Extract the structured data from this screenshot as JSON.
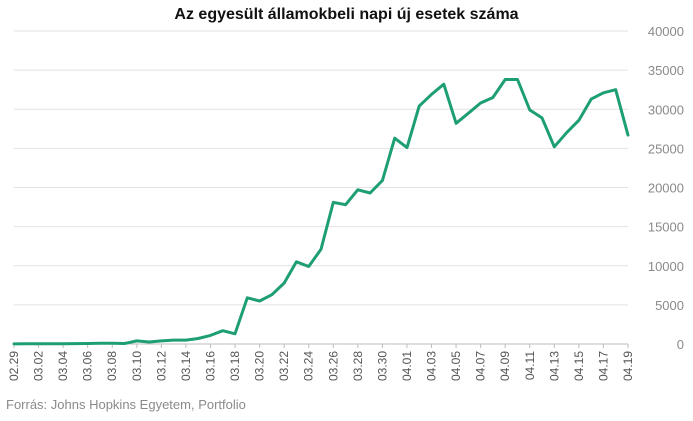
{
  "chart_data": {
    "type": "line",
    "title": "Az egyesült államokbeli napi új esetek száma",
    "source": "Forrás: Johns Hopkins Egyetem, Portfolio",
    "ylim": [
      0,
      40000
    ],
    "yticks": [
      0,
      5000,
      10000,
      15000,
      20000,
      25000,
      30000,
      35000,
      40000
    ],
    "grid": true,
    "axis_position": "right",
    "line_color": "#1e9e74",
    "x": [
      "02.29",
      "03.01",
      "03.02",
      "03.03",
      "03.04",
      "03.05",
      "03.06",
      "03.07",
      "03.08",
      "03.09",
      "03.10",
      "03.11",
      "03.12",
      "03.13",
      "03.14",
      "03.15",
      "03.16",
      "03.17",
      "03.18",
      "03.19",
      "03.20",
      "03.21",
      "03.22",
      "03.23",
      "03.24",
      "03.25",
      "03.26",
      "03.27",
      "03.28",
      "03.29",
      "03.30",
      "03.31",
      "04.01",
      "04.02",
      "04.03",
      "04.04",
      "04.05",
      "04.06",
      "04.07",
      "04.08",
      "04.09",
      "04.10",
      "04.11",
      "04.12",
      "04.13",
      "04.14",
      "04.15",
      "04.16",
      "04.17",
      "04.18",
      "04.19"
    ],
    "xtick_labels": [
      "02.29",
      "03.02",
      "03.04",
      "03.06",
      "03.08",
      "03.10",
      "03.12",
      "03.14",
      "03.16",
      "03.18",
      "03.20",
      "03.22",
      "03.24",
      "03.26",
      "03.28",
      "03.30",
      "04.01",
      "04.03",
      "04.05",
      "04.07",
      "04.09",
      "04.11",
      "04.13",
      "04.15",
      "04.17",
      "04.19"
    ],
    "values": [
      10,
      20,
      20,
      30,
      30,
      50,
      60,
      100,
      100,
      60,
      400,
      250,
      400,
      500,
      500,
      700,
      1100,
      1700,
      1300,
      5900,
      5500,
      6300,
      7800,
      10500,
      9900,
      12100,
      18100,
      17800,
      19700,
      19300,
      20900,
      26300,
      25100,
      30400,
      31900,
      33200,
      28200,
      29500,
      30800,
      31500,
      33800,
      33800,
      29900,
      28900,
      25200,
      27000,
      28600,
      31300,
      32100,
      32500,
      26700
    ]
  }
}
